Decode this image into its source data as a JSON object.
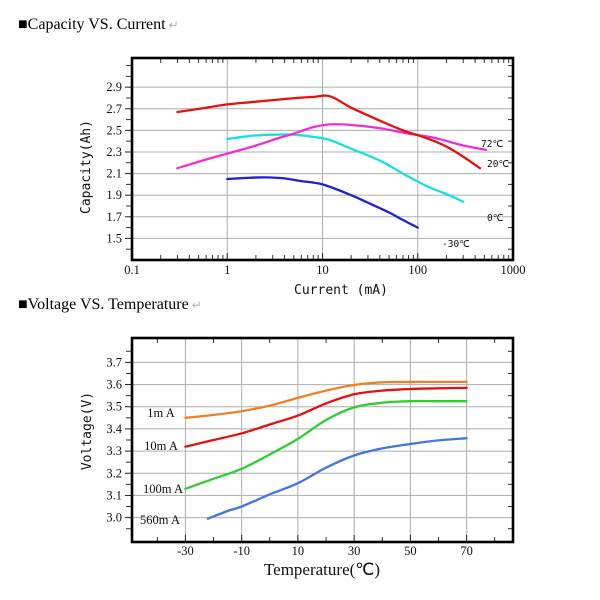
{
  "page": {
    "sections": [
      {
        "title": "■Capacity VS. Current",
        "return_mark": "↵"
      },
      {
        "title": "■Voltage VS. Temperature",
        "return_mark": "↵"
      }
    ]
  },
  "chart_data": [
    {
      "type": "line",
      "title": "Capacity VS. Current",
      "xlabel": "Current (mA)",
      "ylabel": "Capacity(Ah)",
      "x_scale": "log",
      "xlim": [
        0.1,
        1000
      ],
      "ylim": [
        1.3,
        3.17
      ],
      "grid": true,
      "grid_color": "#adadad",
      "frame_color": "#000000",
      "xticks": {
        "values": [
          0.1,
          1,
          10,
          100,
          1000
        ],
        "labels": [
          "0.1",
          "1",
          "10",
          "100",
          "1000"
        ]
      },
      "yticks": {
        "values": [
          1.5,
          1.7,
          1.9,
          2.1,
          2.3,
          2.5,
          2.7,
          2.9
        ],
        "labels": [
          "1.5",
          "1.7",
          "1.9",
          "2.1",
          "2.3",
          "2.5",
          "2.7",
          "2.9"
        ]
      },
      "x_minor": [
        0.2,
        0.3,
        0.4,
        0.5,
        0.6,
        0.7,
        0.8,
        0.9,
        2,
        3,
        4,
        5,
        6,
        7,
        8,
        9,
        20,
        30,
        40,
        50,
        60,
        70,
        80,
        90,
        200,
        300,
        400,
        500,
        600,
        700,
        800,
        900
      ],
      "y_minor": [
        1.4,
        1.6,
        1.8,
        2.0,
        2.2,
        2.4,
        2.6,
        2.8,
        3.0,
        3.1
      ],
      "series": [
        {
          "name": "-30℃",
          "color": "#2020cf",
          "points": [
            [
              1,
              2.05
            ],
            [
              1.6,
              2.06
            ],
            [
              2.5,
              2.065
            ],
            [
              4,
              2.055
            ],
            [
              6,
              2.03
            ],
            [
              10,
              2.0
            ],
            [
              20,
              1.9
            ],
            [
              30,
              1.83
            ],
            [
              50,
              1.74
            ],
            [
              70,
              1.67
            ],
            [
              100,
              1.6
            ]
          ],
          "label": {
            "text": "-30℃",
            "px": [
              442,
              247
            ],
            "anchor": "start"
          }
        },
        {
          "name": "0℃",
          "color": "#19dede",
          "points": [
            [
              1,
              2.42
            ],
            [
              1.8,
              2.45
            ],
            [
              3,
              2.46
            ],
            [
              5,
              2.46
            ],
            [
              8,
              2.44
            ],
            [
              12,
              2.41
            ],
            [
              20,
              2.33
            ],
            [
              40,
              2.22
            ],
            [
              70,
              2.1
            ],
            [
              120,
              1.99
            ],
            [
              200,
              1.91
            ],
            [
              300,
              1.84
            ]
          ],
          "label": {
            "text": "0℃",
            "px": [
              487,
              221
            ],
            "anchor": "start"
          }
        },
        {
          "name": "72℃",
          "color": "#ee2fd2",
          "points": [
            [
              0.3,
              2.15
            ],
            [
              0.6,
              2.23
            ],
            [
              1,
              2.285
            ],
            [
              2,
              2.36
            ],
            [
              3.5,
              2.43
            ],
            [
              5,
              2.47
            ],
            [
              8,
              2.53
            ],
            [
              12,
              2.555
            ],
            [
              20,
              2.55
            ],
            [
              40,
              2.52
            ],
            [
              80,
              2.47
            ],
            [
              150,
              2.43
            ],
            [
              300,
              2.36
            ],
            [
              520,
              2.32
            ]
          ],
          "label": {
            "text": "72℃",
            "px": [
              481,
              147
            ],
            "anchor": "start"
          }
        },
        {
          "name": "20℃",
          "color": "#e31210",
          "points": [
            [
              0.3,
              2.67
            ],
            [
              0.6,
              2.71
            ],
            [
              1,
              2.74
            ],
            [
              2,
              2.765
            ],
            [
              4,
              2.79
            ],
            [
              8,
              2.81
            ],
            [
              12,
              2.815
            ],
            [
              20,
              2.71
            ],
            [
              40,
              2.59
            ],
            [
              70,
              2.5
            ],
            [
              100,
              2.455
            ],
            [
              150,
              2.4
            ],
            [
              220,
              2.33
            ],
            [
              320,
              2.24
            ],
            [
              450,
              2.15
            ]
          ],
          "label": {
            "text": "20℃",
            "px": [
              487,
              167
            ],
            "anchor": "start"
          }
        }
      ]
    },
    {
      "type": "line",
      "title": "Voltage VS. Temperature",
      "xlabel": "Temperature(℃)",
      "ylabel": "Voltage(V)",
      "x_scale": "linear",
      "xlim": [
        -49,
        86.5
      ],
      "ylim": [
        2.89,
        3.81
      ],
      "grid": true,
      "grid_color": "#adadad",
      "frame_color": "#000000",
      "xticks": {
        "values": [
          -30,
          -10,
          10,
          30,
          50,
          70
        ],
        "labels": [
          "-30",
          "-10",
          "10",
          "30",
          "50",
          "70"
        ]
      },
      "yticks": {
        "values": [
          3.0,
          3.1,
          3.2,
          3.3,
          3.4,
          3.5,
          3.6,
          3.7
        ],
        "labels": [
          "3.0",
          "3.1",
          "3.2",
          "3.3",
          "3.4",
          "3.5",
          "3.6",
          "3.7"
        ]
      },
      "x_minor": [
        -40,
        -20,
        0,
        20,
        40,
        60,
        80
      ],
      "y_minor": [
        2.95,
        3.05,
        3.15,
        3.25,
        3.35,
        3.45,
        3.55,
        3.65,
        3.75
      ],
      "series": [
        {
          "name": "560m A",
          "color": "#4377de",
          "points": [
            [
              -22,
              2.995
            ],
            [
              -15,
              3.03
            ],
            [
              -10,
              3.05
            ],
            [
              0,
              3.105
            ],
            [
              10,
              3.155
            ],
            [
              20,
              3.225
            ],
            [
              30,
              3.28
            ],
            [
              40,
              3.312
            ],
            [
              50,
              3.332
            ],
            [
              60,
              3.348
            ],
            [
              70,
              3.358
            ]
          ],
          "label": {
            "text": "560m A",
            "px": [
              160,
              524
            ],
            "anchor": "middle"
          }
        },
        {
          "name": "100m A",
          "color": "#32cd33",
          "points": [
            [
              -30,
              3.13
            ],
            [
              -20,
              3.175
            ],
            [
              -10,
              3.22
            ],
            [
              0,
              3.285
            ],
            [
              10,
              3.355
            ],
            [
              20,
              3.44
            ],
            [
              30,
              3.497
            ],
            [
              40,
              3.518
            ],
            [
              50,
              3.525
            ],
            [
              60,
              3.525
            ],
            [
              70,
              3.525
            ]
          ],
          "label": {
            "text": "100m A",
            "px": [
              163,
              493
            ],
            "anchor": "middle"
          }
        },
        {
          "name": "10m A",
          "color": "#e31210",
          "points": [
            [
              -30,
              3.32
            ],
            [
              -20,
              3.35
            ],
            [
              -10,
              3.38
            ],
            [
              0,
              3.42
            ],
            [
              10,
              3.46
            ],
            [
              20,
              3.515
            ],
            [
              30,
              3.556
            ],
            [
              40,
              3.573
            ],
            [
              50,
              3.58
            ],
            [
              60,
              3.583
            ],
            [
              70,
              3.585
            ]
          ],
          "label": {
            "text": "10m A",
            "px": [
              161,
              450
            ],
            "anchor": "middle"
          }
        },
        {
          "name": "1m A",
          "color": "#ee8125",
          "points": [
            [
              -30,
              3.45
            ],
            [
              -20,
              3.463
            ],
            [
              -10,
              3.48
            ],
            [
              0,
              3.505
            ],
            [
              10,
              3.54
            ],
            [
              20,
              3.573
            ],
            [
              30,
              3.598
            ],
            [
              40,
              3.61
            ],
            [
              55,
              3.612
            ],
            [
              70,
              3.612
            ]
          ],
          "label": {
            "text": "1m A",
            "px": [
              161,
              417
            ],
            "anchor": "middle"
          }
        }
      ]
    }
  ]
}
